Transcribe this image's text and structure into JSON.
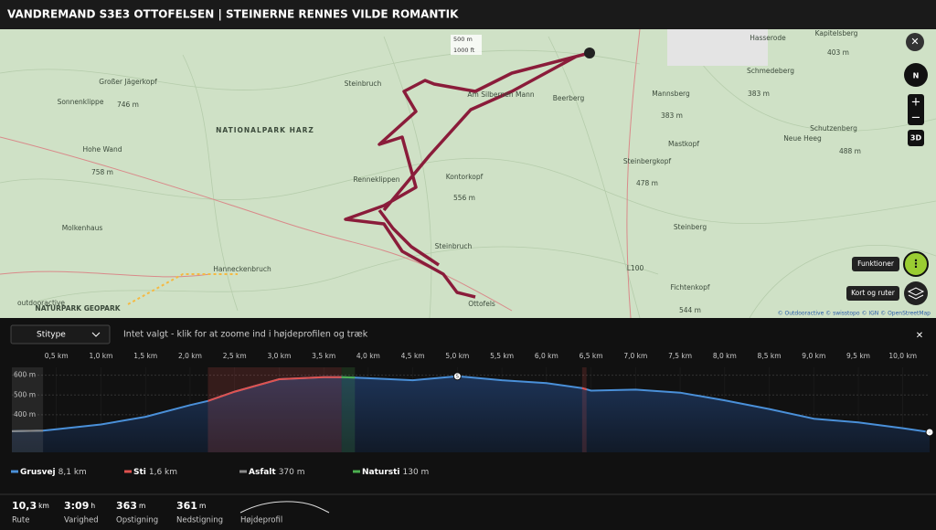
{
  "header": {
    "title": "VANDREMAND S3E3 OTTOFELSEN | STEINERNE RENNES VILDE ROMANTIK"
  },
  "map": {
    "labels": [
      "Steinbruch",
      "Am Silbernen Mann",
      "Beerberg",
      "NATIONALPARK HARZ",
      "Großer Jägerkopf",
      "746 m",
      "Sonnenklippe",
      "Hohe Wand",
      "758 m",
      "Molkenhaus",
      "Hanneckenbruch",
      "Renneklippen",
      "Kontorkopf",
      "556 m",
      "Steinbruch",
      "Ottofels",
      "Hasserode",
      "Schmedeberg",
      "383 m",
      "Mannsberg",
      "383 m",
      "Mastkopf",
      "Neue Heeg",
      "Schutzenberg",
      "488 m",
      "Steinbergkopf",
      "478 m",
      "Steinberg",
      "Fichtenkopf",
      "544 m",
      "403 m",
      "Kapitelsberg",
      "L100",
      "outdooractive",
      "NATURPARK GEOPARK"
    ],
    "scale": [
      "500 m",
      "1000 ft"
    ],
    "compass": "N",
    "view3d": "3D",
    "functions": "Funktioner",
    "layers": "Kort og ruter",
    "attribution": "© Outdooractive © swisstopo © IGN © OpenStreetMap"
  },
  "profile": {
    "filter": "Stitype",
    "hint": "Intet valgt - klik for at zoome ind i højdeprofilen og træk",
    "xlim": [
      0,
      10.3
    ],
    "ylim": [
      210,
      640
    ],
    "xticks": [
      {
        "value": 0.5,
        "label": "0,5 km"
      },
      {
        "value": 1,
        "label": "1,0 km"
      },
      {
        "value": 1.5,
        "label": "1,5 km"
      },
      {
        "value": 2,
        "label": "2,0 km"
      },
      {
        "value": 2.5,
        "label": "2,5 km"
      },
      {
        "value": 3,
        "label": "3,0 km"
      },
      {
        "value": 3.5,
        "label": "3,5 km"
      },
      {
        "value": 4,
        "label": "4,0 km"
      },
      {
        "value": 4.5,
        "label": "4,5 km"
      },
      {
        "value": 5,
        "label": "5,0 km"
      },
      {
        "value": 5.5,
        "label": "5,5 km"
      },
      {
        "value": 6,
        "label": "6,0 km"
      },
      {
        "value": 6.5,
        "label": "6,5 km"
      },
      {
        "value": 7,
        "label": "7,0 km"
      },
      {
        "value": 7.5,
        "label": "7,5 km"
      },
      {
        "value": 8,
        "label": "8,0 km"
      },
      {
        "value": 8.5,
        "label": "8,5 km"
      },
      {
        "value": 9,
        "label": "9,0 km"
      },
      {
        "value": 9.5,
        "label": "9,5 km"
      },
      {
        "value": 10,
        "label": "10,0 km"
      }
    ],
    "yticks": [
      {
        "value": 400,
        "label": "400 m"
      },
      {
        "value": 500,
        "label": "500 m"
      },
      {
        "value": 600,
        "label": "600 m"
      }
    ],
    "x": [
      0,
      0.35,
      0.5,
      1,
      1.5,
      2,
      2.2,
      2.5,
      3,
      3.5,
      3.7,
      3.85,
      4,
      4.5,
      5,
      5.5,
      6,
      6.4,
      6.5,
      7,
      7.5,
      8,
      8.5,
      9,
      9.5,
      10,
      10.3
    ],
    "elevation": [
      317,
      320,
      327,
      351,
      390,
      449,
      470,
      517,
      580,
      590,
      590,
      588,
      585,
      575,
      595,
      575,
      560,
      535,
      522,
      527,
      512,
      473,
      429,
      380,
      361,
      332,
      312
    ],
    "segments": [
      {
        "start": 0,
        "end": 0.35,
        "color": "#8a8a8a"
      },
      {
        "start": 2.2,
        "end": 3.7,
        "color": "#e0524f"
      },
      {
        "start": 3.7,
        "end": 3.85,
        "color": "#4caf50"
      },
      {
        "start": 6.4,
        "end": 6.45,
        "color": "#e0524f"
      }
    ],
    "line_color": "#4a90d9",
    "legend": [
      {
        "name": "Grusvej",
        "length": "8,1 km",
        "color": "#4a90d9"
      },
      {
        "name": "Sti",
        "length": "1,6 km",
        "color": "#e0524f"
      },
      {
        "name": "Asfalt",
        "length": "370 m",
        "color": "#8a8a8a"
      },
      {
        "name": "Natursti",
        "length": "130 m",
        "color": "#4caf50"
      }
    ]
  },
  "stats": [
    {
      "value": "10,3",
      "unit": "km",
      "label": "Rute"
    },
    {
      "value": "3:09",
      "unit": "h",
      "label": "Varighed"
    },
    {
      "value": "363",
      "unit": "m",
      "label": "Opstigning"
    },
    {
      "value": "361",
      "unit": "m",
      "label": "Nedstigning"
    }
  ],
  "profile_toggle": "Højdeprofil"
}
